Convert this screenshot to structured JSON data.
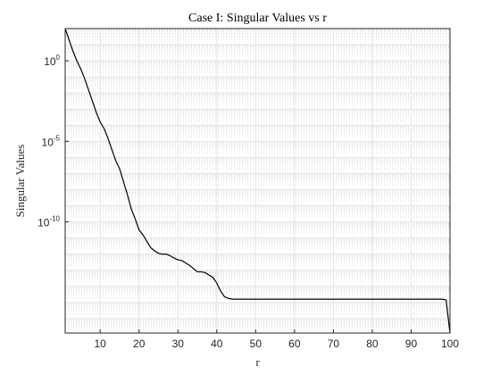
{
  "chart_data": {
    "type": "line",
    "title": "Case I: Singular Values vs r",
    "xlabel": "r",
    "ylabel": "Singular Values",
    "xlim": [
      1,
      100
    ],
    "ylim_log10": [
      -16.9,
      2
    ],
    "yscale": "log",
    "grid": "major-and-minor",
    "x_ticks": [
      10,
      20,
      30,
      40,
      50,
      60,
      70,
      80,
      90,
      100
    ],
    "y_ticks": [
      {
        "base": "10",
        "exp": "0",
        "log10": 0
      },
      {
        "base": "10",
        "exp": "-5",
        "log10": -5
      },
      {
        "base": "10",
        "exp": "-10",
        "log10": -10
      }
    ],
    "series": [
      {
        "color": "#000000",
        "x": [
          1,
          2,
          3,
          4,
          5,
          6,
          7,
          8,
          9,
          10,
          11,
          12,
          13,
          14,
          15,
          16,
          17,
          18,
          19,
          20,
          21,
          22,
          23,
          24,
          25,
          26,
          27,
          28,
          29,
          30,
          31,
          32,
          33,
          34,
          35,
          36,
          37,
          38,
          39,
          40,
          41,
          42,
          43,
          44,
          45,
          46,
          47,
          48,
          49,
          50,
          55,
          60,
          65,
          70,
          75,
          80,
          85,
          90,
          95,
          98,
          99,
          100
        ],
        "log10_y": [
          2.0,
          1.3,
          0.6,
          0.0,
          -0.5,
          -1.1,
          -1.8,
          -2.5,
          -3.2,
          -3.8,
          -4.2,
          -4.8,
          -5.5,
          -6.2,
          -6.7,
          -7.5,
          -8.3,
          -9.2,
          -9.8,
          -10.5,
          -10.8,
          -11.2,
          -11.6,
          -11.8,
          -11.95,
          -12.0,
          -12.0,
          -12.1,
          -12.25,
          -12.35,
          -12.4,
          -12.55,
          -12.7,
          -12.9,
          -13.1,
          -13.1,
          -13.15,
          -13.3,
          -13.45,
          -13.8,
          -14.3,
          -14.65,
          -14.75,
          -14.8,
          -14.8,
          -14.8,
          -14.8,
          -14.8,
          -14.8,
          -14.8,
          -14.8,
          -14.8,
          -14.8,
          -14.8,
          -14.8,
          -14.8,
          -14.8,
          -14.8,
          -14.8,
          -14.8,
          -14.85,
          -16.9
        ]
      }
    ]
  }
}
